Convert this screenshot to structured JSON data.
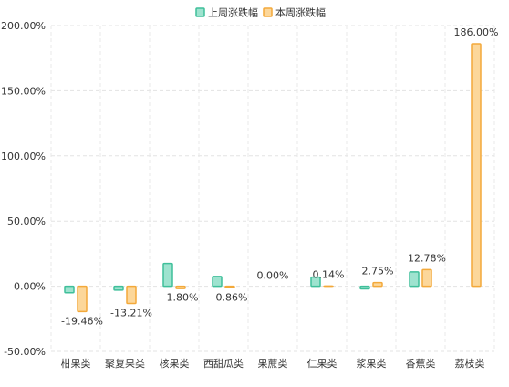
{
  "chart_data": {
    "type": "bar",
    "legend_position": "top-center",
    "categories": [
      "柑果类",
      "聚复果类",
      "核果类",
      "西甜瓜类",
      "果蔗类",
      "仁果类",
      "浆果类",
      "香蕉类",
      "荔枝类"
    ],
    "series": [
      {
        "name": "上周涨跌幅",
        "color": "#9ee3cf",
        "stroke": "#3fbf9a",
        "values": [
          -5.0,
          -3.0,
          17.5,
          7.5,
          0.0,
          7.0,
          -2.0,
          11.0,
          0.0
        ]
      },
      {
        "name": "本周涨跌幅",
        "color": "#fcd79a",
        "stroke": "#f3a93a",
        "values": [
          -19.46,
          -13.21,
          -1.8,
          -0.86,
          0.0,
          0.14,
          2.75,
          12.78,
          186.0
        ],
        "labels": [
          "-19.46%",
          "-13.21%",
          "-1.80%",
          "-0.86%",
          "0.00%",
          "0.14%",
          "2.75%",
          "12.78%",
          "186.00%"
        ]
      }
    ],
    "y_ticks": [
      "200.00%",
      "150.00%",
      "100.00%",
      "50.00%",
      "0.00%",
      "-50.00%"
    ],
    "ylim": [
      -50,
      200
    ],
    "grid": true
  }
}
